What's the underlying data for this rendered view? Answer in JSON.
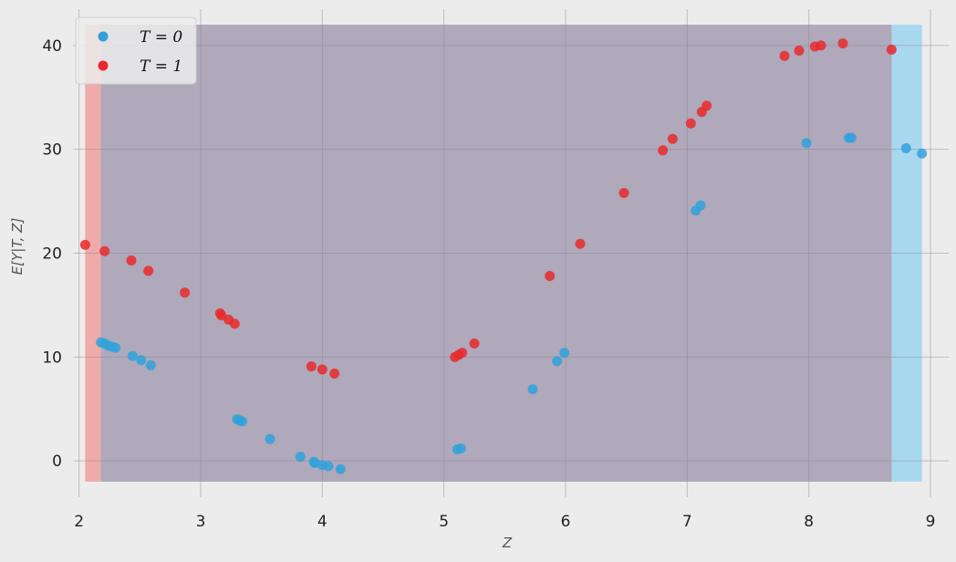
{
  "chart_data": {
    "type": "scatter",
    "xlabel": "Z",
    "ylabel": "E[Y|T, Z]",
    "xlim": [
      1.95,
      9.15
    ],
    "ylim": [
      -3.5,
      43.5
    ],
    "xticks": [
      2,
      3,
      4,
      5,
      6,
      7,
      8,
      9
    ],
    "yticks": [
      0,
      10,
      20,
      30,
      40
    ],
    "grid": true,
    "legend_position": "top-left",
    "colors": {
      "t0": "#30a2da",
      "t1": "#e82a2a",
      "band_t0": "#a8d8ef",
      "band_t1": "#efaaaa",
      "overlap": "#b0a8bb",
      "background": "#ececec",
      "grid": "#c8c8c8"
    },
    "shaded_regions": [
      {
        "series": "T=1",
        "x": [
          2.05,
          8.68
        ],
        "y": [
          -2,
          42
        ]
      },
      {
        "series": "T=0",
        "x": [
          2.18,
          8.93
        ],
        "y": [
          -2,
          42
        ]
      }
    ],
    "series": [
      {
        "name": "T = 0",
        "color": "#30a2da",
        "points": [
          [
            2.18,
            11.4
          ],
          [
            2.21,
            11.3
          ],
          [
            2.24,
            11.1
          ],
          [
            2.27,
            11.0
          ],
          [
            2.3,
            10.9
          ],
          [
            2.44,
            10.1
          ],
          [
            2.51,
            9.7
          ],
          [
            2.59,
            9.2
          ],
          [
            3.3,
            4.0
          ],
          [
            3.32,
            3.9
          ],
          [
            3.34,
            3.8
          ],
          [
            3.57,
            2.1
          ],
          [
            3.82,
            0.4
          ],
          [
            3.93,
            -0.1
          ],
          [
            3.94,
            -0.2
          ],
          [
            4.0,
            -0.4
          ],
          [
            4.05,
            -0.5
          ],
          [
            4.15,
            -0.8
          ],
          [
            5.11,
            1.1
          ],
          [
            5.14,
            1.2
          ],
          [
            5.73,
            6.9
          ],
          [
            5.93,
            9.6
          ],
          [
            5.99,
            10.4
          ],
          [
            7.07,
            24.1
          ],
          [
            7.11,
            24.6
          ],
          [
            7.98,
            30.6
          ],
          [
            8.33,
            31.1
          ],
          [
            8.35,
            31.1
          ],
          [
            8.8,
            30.1
          ],
          [
            8.93,
            29.6
          ]
        ]
      },
      {
        "name": "T = 1",
        "color": "#e82a2a",
        "points": [
          [
            2.05,
            20.8
          ],
          [
            2.21,
            20.2
          ],
          [
            2.43,
            19.3
          ],
          [
            2.57,
            18.3
          ],
          [
            2.87,
            16.2
          ],
          [
            3.16,
            14.2
          ],
          [
            3.17,
            14.0
          ],
          [
            3.23,
            13.6
          ],
          [
            3.28,
            13.2
          ],
          [
            3.91,
            9.1
          ],
          [
            4.0,
            8.8
          ],
          [
            4.1,
            8.4
          ],
          [
            5.09,
            10.0
          ],
          [
            5.12,
            10.2
          ],
          [
            5.15,
            10.4
          ],
          [
            5.25,
            11.3
          ],
          [
            5.87,
            17.8
          ],
          [
            6.12,
            20.9
          ],
          [
            6.48,
            25.8
          ],
          [
            6.8,
            29.9
          ],
          [
            6.88,
            31.0
          ],
          [
            7.03,
            32.5
          ],
          [
            7.12,
            33.6
          ],
          [
            7.16,
            34.2
          ],
          [
            7.8,
            39.0
          ],
          [
            7.92,
            39.5
          ],
          [
            8.05,
            39.9
          ],
          [
            8.1,
            40.0
          ],
          [
            8.28,
            40.2
          ],
          [
            8.68,
            39.6
          ]
        ]
      }
    ],
    "legend": [
      {
        "label": "T = 0",
        "color": "#30a2da"
      },
      {
        "label": "T = 1",
        "color": "#e82a2a"
      }
    ]
  }
}
